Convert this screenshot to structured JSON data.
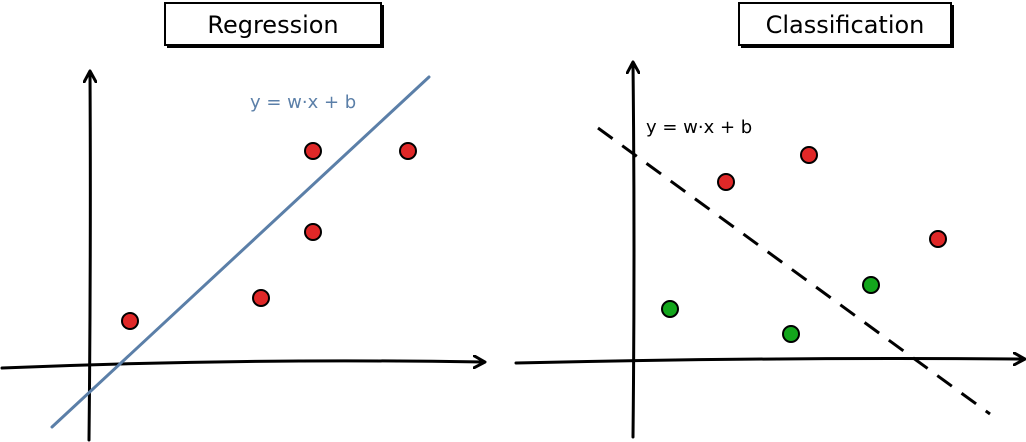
{
  "panels": [
    {
      "title": "Regression",
      "equation": "y = w·x + b",
      "line_style": "solid",
      "points": [
        {
          "class": "red"
        },
        {
          "class": "red"
        },
        {
          "class": "red"
        },
        {
          "class": "red"
        },
        {
          "class": "red"
        }
      ]
    },
    {
      "title": "Classification",
      "equation": "y = w·x + b",
      "line_style": "dashed",
      "points": [
        {
          "class": "red"
        },
        {
          "class": "red"
        },
        {
          "class": "red"
        },
        {
          "class": "green"
        },
        {
          "class": "green"
        },
        {
          "class": "green"
        }
      ]
    }
  ],
  "colors": {
    "red": "#e02828",
    "green": "#13a61c",
    "regression_line": "#5b7fa8",
    "axis": "#000000",
    "title_fill": "#ffffff"
  }
}
